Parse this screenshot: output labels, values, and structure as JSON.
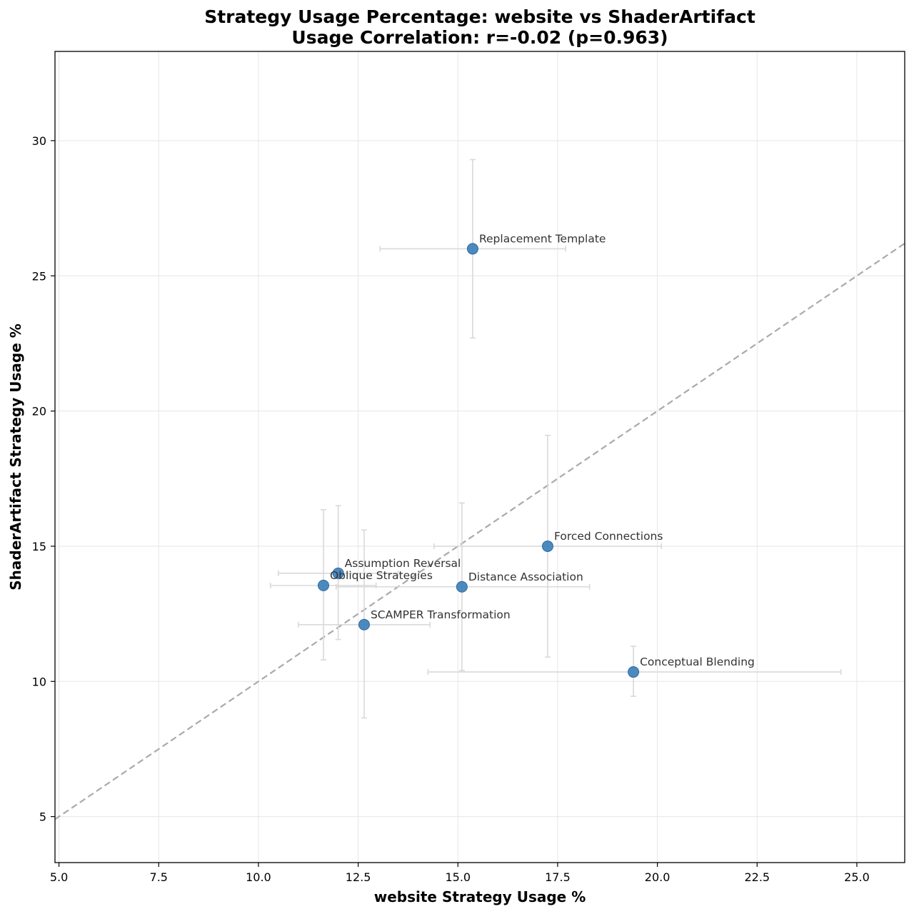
{
  "chart_data": {
    "type": "scatter",
    "title": "Strategy Usage Percentage: website vs ShaderArtifact",
    "subtitle": "Usage Correlation: r=-0.02 (p=0.963)",
    "xlabel": "website Strategy Usage %",
    "ylabel": "ShaderArtifact Strategy Usage %",
    "xlim": [
      4.9,
      26.2
    ],
    "ylim": [
      3.3,
      33.3
    ],
    "xticks": [
      5.0,
      7.5,
      10.0,
      12.5,
      15.0,
      17.5,
      20.0,
      22.5,
      25.0
    ],
    "xtick_labels": [
      "5.0",
      "7.5",
      "10.0",
      "12.5",
      "15.0",
      "17.5",
      "20.0",
      "22.5",
      "25.0"
    ],
    "yticks": [
      5,
      10,
      15,
      20,
      25,
      30
    ],
    "ytick_labels": [
      "5",
      "10",
      "15",
      "20",
      "25",
      "30"
    ],
    "grid": true,
    "diagonal_reference": {
      "style": "dashed",
      "color": "#aaaaaa",
      "from": [
        4.9,
        4.9
      ],
      "to": [
        26.2,
        26.2
      ]
    },
    "point_color": "#3a7db8",
    "errorbar_color": "#d9d9d9",
    "points": [
      {
        "label": "Replacement Template",
        "x": 15.37,
        "y": 26.0,
        "xerr": [
          13.05,
          17.7
        ],
        "yerr": [
          22.7,
          29.3
        ]
      },
      {
        "label": "Forced Connections",
        "x": 17.25,
        "y": 15.0,
        "xerr": [
          14.4,
          20.1
        ],
        "yerr": [
          10.9,
          19.1
        ]
      },
      {
        "label": "Assumption Reversal",
        "x": 12.0,
        "y": 14.0,
        "xerr": [
          10.5,
          13.5
        ],
        "yerr": [
          11.55,
          16.5
        ]
      },
      {
        "label": "Oblique Strategies",
        "x": 11.63,
        "y": 13.55,
        "xerr": [
          10.3,
          12.95
        ],
        "yerr": [
          10.8,
          16.35
        ]
      },
      {
        "label": "Distance Association",
        "x": 15.1,
        "y": 13.5,
        "xerr": [
          11.95,
          18.3
        ],
        "yerr": [
          10.4,
          16.6
        ]
      },
      {
        "label": "SCAMPER Transformation",
        "x": 12.65,
        "y": 12.1,
        "xerr": [
          11.0,
          14.3
        ],
        "yerr": [
          8.65,
          15.6
        ]
      },
      {
        "label": "Conceptual Blending",
        "x": 19.4,
        "y": 10.35,
        "xerr": [
          14.25,
          24.6
        ],
        "yerr": [
          9.45,
          11.3
        ]
      }
    ]
  }
}
